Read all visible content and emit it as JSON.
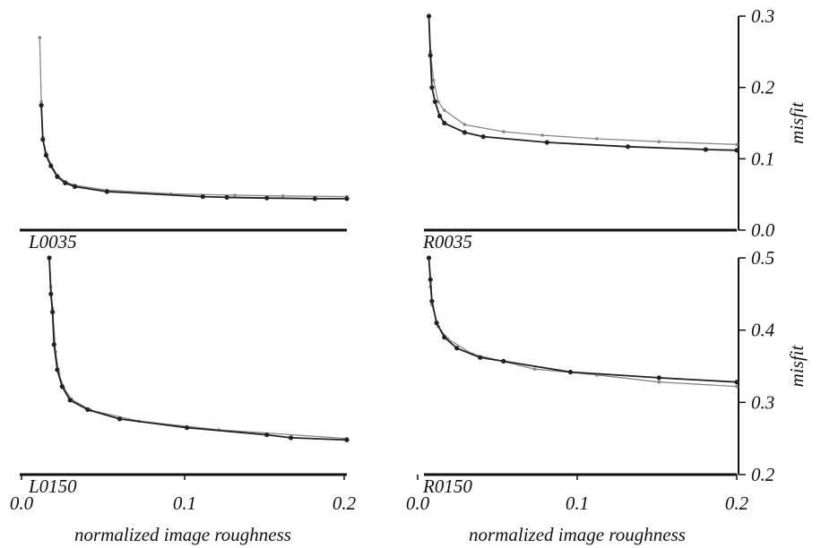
{
  "chart_data": [
    {
      "type": "line",
      "panel": "L0035",
      "xlim": [
        0.0,
        0.2
      ],
      "ylim": [
        0.0,
        0.3
      ],
      "xticks": [
        "0.0",
        "0.1",
        "0.2"
      ],
      "yticks": [],
      "xlabel": "",
      "ylabel": "",
      "series": [
        {
          "color": "#222222",
          "marker": "dot",
          "points": [
            [
              0.009,
              0.175
            ],
            [
              0.01,
              0.127
            ],
            [
              0.012,
              0.105
            ],
            [
              0.015,
              0.09
            ],
            [
              0.019,
              0.075
            ],
            [
              0.024,
              0.066
            ],
            [
              0.03,
              0.061
            ],
            [
              0.05,
              0.054
            ],
            [
              0.11,
              0.047
            ],
            [
              0.125,
              0.046
            ],
            [
              0.15,
              0.045
            ],
            [
              0.18,
              0.044
            ],
            [
              0.2,
              0.044
            ]
          ]
        },
        {
          "color": "#888888",
          "marker": "small-dot",
          "points": [
            [
              0.008,
              0.27
            ],
            [
              0.009,
              0.18
            ],
            [
              0.01,
              0.13
            ],
            [
              0.012,
              0.108
            ],
            [
              0.015,
              0.092
            ],
            [
              0.019,
              0.077
            ],
            [
              0.024,
              0.068
            ],
            [
              0.03,
              0.063
            ],
            [
              0.05,
              0.056
            ],
            [
              0.09,
              0.051
            ],
            [
              0.13,
              0.049
            ],
            [
              0.16,
              0.048
            ],
            [
              0.2,
              0.047
            ]
          ]
        }
      ]
    },
    {
      "type": "line",
      "panel": "R0035",
      "xlim": [
        0.0,
        0.2
      ],
      "ylim": [
        0.0,
        0.3
      ],
      "xticks": [
        "0.0",
        "0.1",
        "0.2"
      ],
      "yticks": [
        "0.0",
        "0.1",
        "0.2",
        "0.3"
      ],
      "xlabel": "",
      "ylabel": "misfit",
      "series": [
        {
          "color": "#222222",
          "marker": "dot",
          "points": [
            [
              0.002,
              0.3
            ],
            [
              0.003,
              0.245
            ],
            [
              0.004,
              0.2
            ],
            [
              0.006,
              0.18
            ],
            [
              0.009,
              0.16
            ],
            [
              0.012,
              0.15
            ],
            [
              0.025,
              0.137
            ],
            [
              0.037,
              0.131
            ],
            [
              0.078,
              0.123
            ],
            [
              0.13,
              0.117
            ],
            [
              0.18,
              0.113
            ],
            [
              0.2,
              0.112
            ]
          ]
        },
        {
          "color": "#888888",
          "marker": "small-dot",
          "points": [
            [
              0.002,
              0.3
            ],
            [
              0.003,
              0.25
            ],
            [
              0.005,
              0.21
            ],
            [
              0.008,
              0.18
            ],
            [
              0.012,
              0.168
            ],
            [
              0.025,
              0.148
            ],
            [
              0.05,
              0.138
            ],
            [
              0.075,
              0.133
            ],
            [
              0.11,
              0.128
            ],
            [
              0.15,
              0.124
            ],
            [
              0.2,
              0.12
            ]
          ]
        }
      ]
    },
    {
      "type": "line",
      "panel": "L0150",
      "xlim": [
        0.0,
        0.2
      ],
      "ylim": [
        0.2,
        0.5
      ],
      "xticks": [
        "0.0",
        "0.1",
        "0.2"
      ],
      "yticks": [],
      "xlabel": "normalized image roughness",
      "ylabel": "",
      "series": [
        {
          "color": "#222222",
          "marker": "dot",
          "points": [
            [
              0.014,
              0.5
            ],
            [
              0.015,
              0.45
            ],
            [
              0.016,
              0.425
            ],
            [
              0.017,
              0.38
            ],
            [
              0.019,
              0.345
            ],
            [
              0.022,
              0.322
            ],
            [
              0.027,
              0.303
            ],
            [
              0.038,
              0.29
            ],
            [
              0.058,
              0.277
            ],
            [
              0.1,
              0.265
            ],
            [
              0.15,
              0.255
            ],
            [
              0.165,
              0.251
            ],
            [
              0.2,
              0.248
            ]
          ]
        },
        {
          "color": "#888888",
          "marker": "small-dot",
          "points": [
            [
              0.014,
              0.5
            ],
            [
              0.015,
              0.46
            ],
            [
              0.016,
              0.43
            ],
            [
              0.018,
              0.37
            ],
            [
              0.02,
              0.34
            ],
            [
              0.023,
              0.32
            ],
            [
              0.028,
              0.304
            ],
            [
              0.04,
              0.289
            ],
            [
              0.07,
              0.274
            ],
            [
              0.12,
              0.262
            ],
            [
              0.2,
              0.25
            ]
          ]
        }
      ]
    },
    {
      "type": "line",
      "panel": "R0150",
      "xlim": [
        0.0,
        0.2
      ],
      "ylim": [
        0.2,
        0.5
      ],
      "xticks": [
        "0.0",
        "0.1",
        "0.2"
      ],
      "yticks": [
        "0.2",
        "0.3",
        "0.4",
        "0.5"
      ],
      "xlabel": "normalized image roughness",
      "ylabel": "misfit",
      "series": [
        {
          "color": "#222222",
          "marker": "dot",
          "points": [
            [
              0.002,
              0.5
            ],
            [
              0.003,
              0.47
            ],
            [
              0.004,
              0.44
            ],
            [
              0.007,
              0.41
            ],
            [
              0.012,
              0.39
            ],
            [
              0.02,
              0.375
            ],
            [
              0.035,
              0.362
            ],
            [
              0.05,
              0.357
            ],
            [
              0.093,
              0.342
            ],
            [
              0.15,
              0.334
            ],
            [
              0.2,
              0.328
            ]
          ]
        },
        {
          "color": "#888888",
          "marker": "small-dot",
          "points": [
            [
              0.002,
              0.5
            ],
            [
              0.003,
              0.46
            ],
            [
              0.004,
              0.435
            ],
            [
              0.008,
              0.405
            ],
            [
              0.014,
              0.388
            ],
            [
              0.03,
              0.367
            ],
            [
              0.07,
              0.346
            ],
            [
              0.11,
              0.338
            ],
            [
              0.15,
              0.328
            ],
            [
              0.2,
              0.322
            ]
          ]
        }
      ]
    }
  ]
}
